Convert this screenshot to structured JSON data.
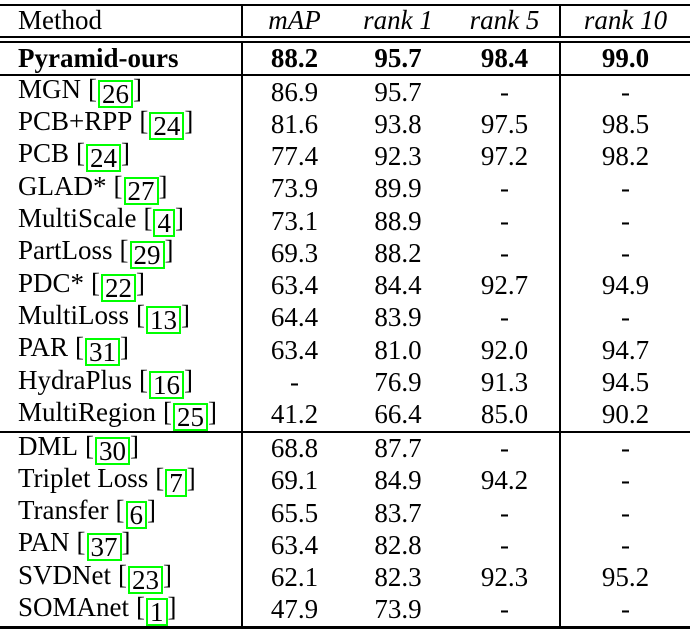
{
  "table": {
    "header": {
      "method": "Method",
      "map": "mAP",
      "rank1": "rank 1",
      "rank5": "rank 5",
      "rank10": "rank 10"
    },
    "highlight": {
      "method": "Pyramid-ours",
      "map": "88.2",
      "rank1": "95.7",
      "rank5": "98.4",
      "rank10": "99.0"
    },
    "sections": [
      {
        "rows": [
          {
            "method": "MGN",
            "cite": "26",
            "map": "86.9",
            "rank1": "95.7",
            "rank5": "-",
            "rank10": "-"
          },
          {
            "method": "PCB+RPP",
            "cite": "24",
            "map": "81.6",
            "rank1": "93.8",
            "rank5": "97.5",
            "rank10": "98.5"
          },
          {
            "method": "PCB",
            "cite": "24",
            "map": "77.4",
            "rank1": "92.3",
            "rank5": "97.2",
            "rank10": "98.2"
          },
          {
            "method": "GLAD*",
            "cite": "27",
            "map": "73.9",
            "rank1": "89.9",
            "rank5": "-",
            "rank10": "-"
          },
          {
            "method": "MultiScale",
            "cite": "4",
            "map": "73.1",
            "rank1": "88.9",
            "rank5": "-",
            "rank10": "-"
          },
          {
            "method": "PartLoss",
            "cite": "29",
            "map": "69.3",
            "rank1": "88.2",
            "rank5": "-",
            "rank10": "-"
          },
          {
            "method": "PDC*",
            "cite": "22",
            "map": "63.4",
            "rank1": "84.4",
            "rank5": "92.7",
            "rank10": "94.9"
          },
          {
            "method": "MultiLoss",
            "cite": "13",
            "map": "64.4",
            "rank1": "83.9",
            "rank5": "-",
            "rank10": "-"
          },
          {
            "method": "PAR",
            "cite": "31",
            "map": "63.4",
            "rank1": "81.0",
            "rank5": "92.0",
            "rank10": "94.7"
          },
          {
            "method": "HydraPlus",
            "cite": "16",
            "map": "-",
            "rank1": "76.9",
            "rank5": "91.3",
            "rank10": "94.5"
          },
          {
            "method": "MultiRegion",
            "cite": "25",
            "map": "41.2",
            "rank1": "66.4",
            "rank5": "85.0",
            "rank10": "90.2"
          }
        ]
      },
      {
        "rows": [
          {
            "method": "DML",
            "cite": "30",
            "map": "68.8",
            "rank1": "87.7",
            "rank5": "-",
            "rank10": "-"
          },
          {
            "method": "Triplet Loss",
            "cite": "7",
            "map": "69.1",
            "rank1": "84.9",
            "rank5": "94.2",
            "rank10": "-"
          },
          {
            "method": "Transfer",
            "cite": "6",
            "map": "65.5",
            "rank1": "83.7",
            "rank5": "-",
            "rank10": "-"
          },
          {
            "method": "PAN",
            "cite": "37",
            "map": "63.4",
            "rank1": "82.8",
            "rank5": "-",
            "rank10": "-"
          },
          {
            "method": "SVDNet",
            "cite": "23",
            "map": "62.1",
            "rank1": "82.3",
            "rank5": "92.3",
            "rank10": "95.2"
          },
          {
            "method": "SOMAnet",
            "cite": "1",
            "map": "47.9",
            "rank1": "73.9",
            "rank5": "-",
            "rank10": "-"
          }
        ]
      }
    ],
    "brackets": {
      "open": "[",
      "close": "]"
    },
    "colors": {
      "cite_border": "#00FF00",
      "rule": "#000000",
      "text": "#000000"
    }
  }
}
